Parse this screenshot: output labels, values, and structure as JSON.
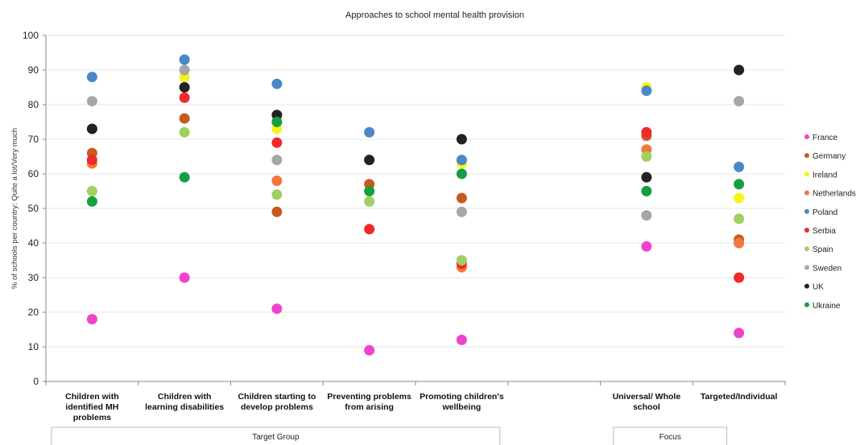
{
  "chart_data": {
    "type": "scatter",
    "title": "Approaches to school mental health provision",
    "ylabel": "% of schools per country: Quite a lot/Very much",
    "ylim": [
      0,
      100
    ],
    "yticks": [
      0,
      10,
      20,
      30,
      40,
      50,
      60,
      70,
      80,
      90,
      100
    ],
    "grid": true,
    "legend_position": "right",
    "categories": [
      [
        "Children with",
        "identified MH",
        "problems"
      ],
      [
        "Children with",
        "learning disabilities"
      ],
      [
        "Children starting to",
        "develop problems"
      ],
      [
        "Preventing problems",
        "from arising"
      ],
      [
        "Promoting children's",
        "wellbeing"
      ],
      [],
      [
        "Universal/ Whole",
        "school"
      ],
      [
        "Targeted/Individual"
      ]
    ],
    "groups": [
      {
        "label": "Target Group",
        "categories": [
          0,
          4
        ]
      },
      {
        "label": "Focus",
        "categories": [
          6,
          7
        ]
      }
    ],
    "series": [
      {
        "name": "France",
        "color": "#ee44cc",
        "values": [
          18,
          30,
          21,
          9,
          12,
          null,
          39,
          14
        ]
      },
      {
        "name": "Germany",
        "color": "#c85a1c",
        "values": [
          66,
          76,
          49,
          57,
          53,
          null,
          71,
          41
        ]
      },
      {
        "name": "Ireland",
        "color": "#f4f41a",
        "values": [
          null,
          88,
          73,
          null,
          63,
          null,
          85,
          53
        ]
      },
      {
        "name": "Netherlands",
        "color": "#f0783c",
        "values": [
          63,
          null,
          58,
          null,
          33,
          null,
          67,
          40
        ]
      },
      {
        "name": "Poland",
        "color": "#4a88c8",
        "values": [
          88,
          93,
          86,
          72,
          64,
          null,
          84,
          62
        ]
      },
      {
        "name": "Serbia",
        "color": "#ee2a2a",
        "values": [
          64,
          82,
          69,
          44,
          34,
          null,
          72,
          30
        ]
      },
      {
        "name": "Spain",
        "color": "#a0d060",
        "values": [
          55,
          72,
          54,
          52,
          35,
          null,
          65,
          47
        ]
      },
      {
        "name": "Sweden",
        "color": "#a6a6a6",
        "values": [
          81,
          90,
          64,
          null,
          49,
          null,
          48,
          81
        ]
      },
      {
        "name": "UK",
        "color": "#222222",
        "values": [
          73,
          85,
          77,
          64,
          70,
          null,
          59,
          90
        ]
      },
      {
        "name": "Ukraine",
        "color": "#14a040",
        "values": [
          52,
          59,
          75,
          55,
          60,
          null,
          55,
          57
        ]
      }
    ]
  }
}
